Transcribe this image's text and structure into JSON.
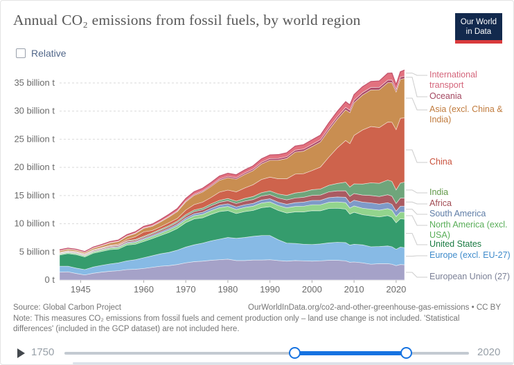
{
  "header": {
    "title": "Annual CO₂ emissions from fossil fuels, by world region",
    "logo_line1": "Our World",
    "logo_line2": "in Data"
  },
  "controls": {
    "relative_label": "Relative"
  },
  "chart_data": {
    "type": "area",
    "stacked": true,
    "title": "Annual CO₂ emissions from fossil fuels, by world region",
    "unit": "billion tonnes CO₂",
    "xlim": [
      1940,
      2022
    ],
    "ylim": [
      0,
      35
    ],
    "grid": "dashed-horizontal",
    "legend_position": "right",
    "x": [
      1940,
      1942,
      1944,
      1946,
      1948,
      1950,
      1952,
      1954,
      1956,
      1958,
      1960,
      1962,
      1964,
      1966,
      1968,
      1970,
      1972,
      1974,
      1976,
      1978,
      1980,
      1982,
      1984,
      1986,
      1988,
      1990,
      1992,
      1994,
      1996,
      1998,
      2000,
      2002,
      2004,
      2006,
      2008,
      2009,
      2010,
      2012,
      2014,
      2016,
      2018,
      2019,
      2020,
      2021,
      2022
    ],
    "x_ticks": [
      1945,
      1960,
      1970,
      1980,
      1990,
      2000,
      2010,
      2020
    ],
    "y_ticks": [
      {
        "v": 0,
        "label": "0 t"
      },
      {
        "v": 5,
        "label": "5 billion t"
      },
      {
        "v": 10,
        "label": "10 billion t"
      },
      {
        "v": 15,
        "label": "15 billion t"
      },
      {
        "v": 20,
        "label": "20 billion t"
      },
      {
        "v": 25,
        "label": "25 billion t"
      },
      {
        "v": 30,
        "label": "30 billion t"
      },
      {
        "v": 35,
        "label": "35 billion t"
      }
    ],
    "series": [
      {
        "name": "European Union (27)",
        "color": "#a5a2c8",
        "label_color": "#7b8096",
        "values": [
          1.4,
          1.45,
          1.15,
          0.9,
          1.2,
          1.4,
          1.55,
          1.65,
          1.85,
          1.9,
          2.05,
          2.25,
          2.45,
          2.55,
          2.75,
          3.05,
          3.25,
          3.35,
          3.5,
          3.6,
          3.7,
          3.45,
          3.45,
          3.55,
          3.55,
          3.6,
          3.45,
          3.35,
          3.45,
          3.4,
          3.35,
          3.4,
          3.5,
          3.5,
          3.4,
          3.15,
          3.2,
          3.05,
          2.8,
          2.9,
          2.9,
          2.8,
          2.55,
          2.75,
          2.7
        ]
      },
      {
        "name": "Europe (excl. EU-27)",
        "color": "#87bae5",
        "label_color": "#3f8bcb",
        "values": [
          1.05,
          1.0,
          0.95,
          0.95,
          1.1,
          1.2,
          1.3,
          1.4,
          1.55,
          1.7,
          1.9,
          2.05,
          2.2,
          2.35,
          2.55,
          2.8,
          3.0,
          3.2,
          3.45,
          3.65,
          3.85,
          3.95,
          4.1,
          4.2,
          4.35,
          4.3,
          3.7,
          3.2,
          3.05,
          2.95,
          2.95,
          3.0,
          3.1,
          3.2,
          3.25,
          3.05,
          3.15,
          3.2,
          3.1,
          3.05,
          3.15,
          3.1,
          2.9,
          3.1,
          3.05
        ]
      },
      {
        "name": "United States",
        "color": "#359c6d",
        "label_color": "#187a41",
        "values": [
          1.98,
          2.25,
          2.4,
          2.25,
          2.45,
          2.48,
          2.55,
          2.46,
          2.8,
          2.75,
          2.89,
          3.05,
          3.25,
          3.55,
          3.85,
          4.33,
          4.6,
          4.5,
          4.7,
          4.9,
          4.78,
          4.4,
          4.6,
          4.6,
          4.95,
          5.12,
          5.2,
          5.35,
          5.6,
          5.75,
          6.01,
          5.9,
          6.1,
          6.05,
          5.95,
          5.5,
          5.68,
          5.35,
          5.5,
          5.25,
          5.4,
          5.26,
          4.71,
          5.03,
          5.06
        ]
      },
      {
        "name": "North America (excl. USA)",
        "color": "#92d48d",
        "label_color": "#58ad57",
        "values": [
          0.16,
          0.18,
          0.2,
          0.2,
          0.22,
          0.25,
          0.27,
          0.28,
          0.31,
          0.32,
          0.34,
          0.36,
          0.4,
          0.44,
          0.48,
          0.52,
          0.57,
          0.61,
          0.65,
          0.7,
          0.74,
          0.72,
          0.74,
          0.76,
          0.82,
          0.85,
          0.87,
          0.92,
          0.96,
          1.0,
          1.05,
          1.06,
          1.1,
          1.12,
          1.14,
          1.08,
          1.12,
          1.15,
          1.18,
          1.2,
          1.23,
          1.24,
          1.12,
          1.18,
          1.22
        ]
      },
      {
        "name": "South America",
        "color": "#7e9ac8",
        "label_color": "#5e7ca6",
        "values": [
          0.06,
          0.07,
          0.08,
          0.09,
          0.1,
          0.11,
          0.12,
          0.14,
          0.16,
          0.18,
          0.2,
          0.22,
          0.24,
          0.26,
          0.28,
          0.31,
          0.34,
          0.37,
          0.4,
          0.43,
          0.46,
          0.46,
          0.47,
          0.5,
          0.53,
          0.56,
          0.59,
          0.63,
          0.68,
          0.73,
          0.77,
          0.78,
          0.83,
          0.88,
          0.95,
          0.93,
          1.02,
          1.08,
          1.12,
          1.08,
          1.05,
          1.05,
          0.95,
          1.05,
          1.09
        ]
      },
      {
        "name": "Africa",
        "color": "#aa5b62",
        "label_color": "#a04a52",
        "values": [
          0.09,
          0.1,
          0.11,
          0.12,
          0.14,
          0.15,
          0.17,
          0.18,
          0.2,
          0.21,
          0.23,
          0.25,
          0.28,
          0.3,
          0.33,
          0.36,
          0.4,
          0.44,
          0.48,
          0.52,
          0.56,
          0.6,
          0.65,
          0.68,
          0.71,
          0.73,
          0.75,
          0.78,
          0.82,
          0.86,
          0.9,
          0.95,
          1.02,
          1.08,
          1.15,
          1.15,
          1.2,
          1.26,
          1.31,
          1.35,
          1.42,
          1.45,
          1.35,
          1.43,
          1.45
        ]
      },
      {
        "name": "India",
        "color": "#6fa57b",
        "label_color": "#629949",
        "values": [
          0.07,
          0.07,
          0.08,
          0.08,
          0.09,
          0.09,
          0.1,
          0.11,
          0.12,
          0.13,
          0.15,
          0.17,
          0.19,
          0.21,
          0.23,
          0.25,
          0.28,
          0.3,
          0.33,
          0.35,
          0.38,
          0.43,
          0.48,
          0.54,
          0.6,
          0.66,
          0.72,
          0.8,
          0.9,
          0.95,
          1.01,
          1.07,
          1.17,
          1.32,
          1.54,
          1.66,
          1.71,
          1.95,
          2.25,
          2.35,
          2.6,
          2.62,
          2.42,
          2.68,
          2.83
        ]
      },
      {
        "name": "China",
        "color": "#ce634c",
        "label_color": "#c9513b",
        "values": [
          0.1,
          0.1,
          0.09,
          0.07,
          0.08,
          0.08,
          0.13,
          0.18,
          0.25,
          0.5,
          0.78,
          0.44,
          0.44,
          0.52,
          0.48,
          0.8,
          0.95,
          1.05,
          1.15,
          1.45,
          1.5,
          1.65,
          1.85,
          2.1,
          2.35,
          2.45,
          2.7,
          2.95,
          3.35,
          3.25,
          3.4,
          3.9,
          5.0,
          6.3,
          7.4,
          7.7,
          8.6,
          9.6,
          10.0,
          9.9,
          10.3,
          10.5,
          10.7,
          11.5,
          11.4
        ]
      },
      {
        "name": "Asia (excl. China & India)",
        "color": "#c98e51",
        "label_color": "#c07b3d",
        "values": [
          0.24,
          0.25,
          0.22,
          0.2,
          0.26,
          0.31,
          0.37,
          0.42,
          0.5,
          0.55,
          0.63,
          0.73,
          0.85,
          1.0,
          1.2,
          1.45,
          1.65,
          1.8,
          1.95,
          2.1,
          2.2,
          2.25,
          2.4,
          2.5,
          2.75,
          3.0,
          3.3,
          3.6,
          3.9,
          4.0,
          4.25,
          4.45,
          4.8,
          5.1,
          5.45,
          5.5,
          5.8,
          6.2,
          6.5,
          6.7,
          7.0,
          7.05,
          6.7,
          6.9,
          7.0
        ]
      },
      {
        "name": "Oceania",
        "color": "#ab4a68",
        "label_color": "#a34760",
        "values": [
          0.04,
          0.04,
          0.05,
          0.05,
          0.05,
          0.06,
          0.07,
          0.07,
          0.08,
          0.09,
          0.1,
          0.11,
          0.12,
          0.13,
          0.14,
          0.16,
          0.17,
          0.19,
          0.2,
          0.22,
          0.24,
          0.25,
          0.26,
          0.27,
          0.29,
          0.31,
          0.32,
          0.33,
          0.35,
          0.37,
          0.39,
          0.4,
          0.41,
          0.42,
          0.44,
          0.44,
          0.45,
          0.45,
          0.44,
          0.45,
          0.45,
          0.45,
          0.43,
          0.42,
          0.42
        ]
      },
      {
        "name": "International transport",
        "color": "#e2717f",
        "label_color": "#d4647a",
        "values": [
          0.17,
          0.14,
          0.12,
          0.13,
          0.15,
          0.17,
          0.19,
          0.21,
          0.23,
          0.24,
          0.26,
          0.29,
          0.32,
          0.36,
          0.4,
          0.45,
          0.48,
          0.49,
          0.51,
          0.54,
          0.55,
          0.53,
          0.55,
          0.58,
          0.62,
          0.64,
          0.67,
          0.69,
          0.73,
          0.77,
          0.81,
          0.82,
          0.9,
          0.96,
          1.0,
          0.94,
          1.0,
          1.03,
          1.07,
          1.13,
          1.22,
          1.25,
          0.88,
          0.95,
          1.07
        ]
      }
    ]
  },
  "footer": {
    "source": "Source: Global Carbon Project",
    "citation": "OurWorldInData.org/co2-and-other-greenhouse-gas-emissions • CC BY",
    "note": "Note: This measures CO₂ emissions from fossil fuels and cement production only – land use change is not included. 'Statistical differences' (included in the GCP dataset) are not included here."
  },
  "timeline": {
    "start_year": "1750",
    "end_year": "2020"
  }
}
